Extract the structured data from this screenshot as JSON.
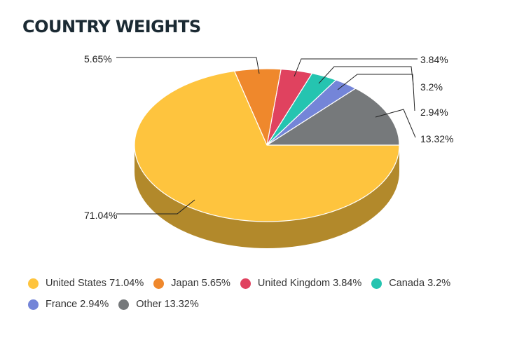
{
  "title": "COUNTRY WEIGHTS",
  "chart_data": {
    "type": "pie",
    "title": "COUNTRY WEIGHTS",
    "three_d": true,
    "legend_position": "bottom",
    "slices": [
      {
        "name": "United States",
        "value": 71.04,
        "label": "71.04%",
        "legend": "United States 71.04%",
        "color": "#fec43e",
        "side_color": "#b2892b"
      },
      {
        "name": "Japan",
        "value": 5.65,
        "label": "5.65%",
        "legend": "Japan 5.65%",
        "color": "#ef882c",
        "side_color": "#a75f1f"
      },
      {
        "name": "United Kingdom",
        "value": 3.84,
        "label": "3.84%",
        "legend": "United Kingdom 3.84%",
        "color": "#e0425f",
        "side_color": "#9d2e42"
      },
      {
        "name": "Canada",
        "value": 3.2,
        "label": "3.2%",
        "legend": "Canada 3.2%",
        "color": "#25c4b0",
        "side_color": "#1a897b"
      },
      {
        "name": "France",
        "value": 2.94,
        "label": "2.94%",
        "legend": "France 2.94%",
        "color": "#7485d8",
        "side_color": "#515d97"
      },
      {
        "name": "Other",
        "value": 13.32,
        "label": "13.32%",
        "legend": "Other 13.32%",
        "color": "#76797b",
        "side_color": "#525456"
      }
    ]
  }
}
